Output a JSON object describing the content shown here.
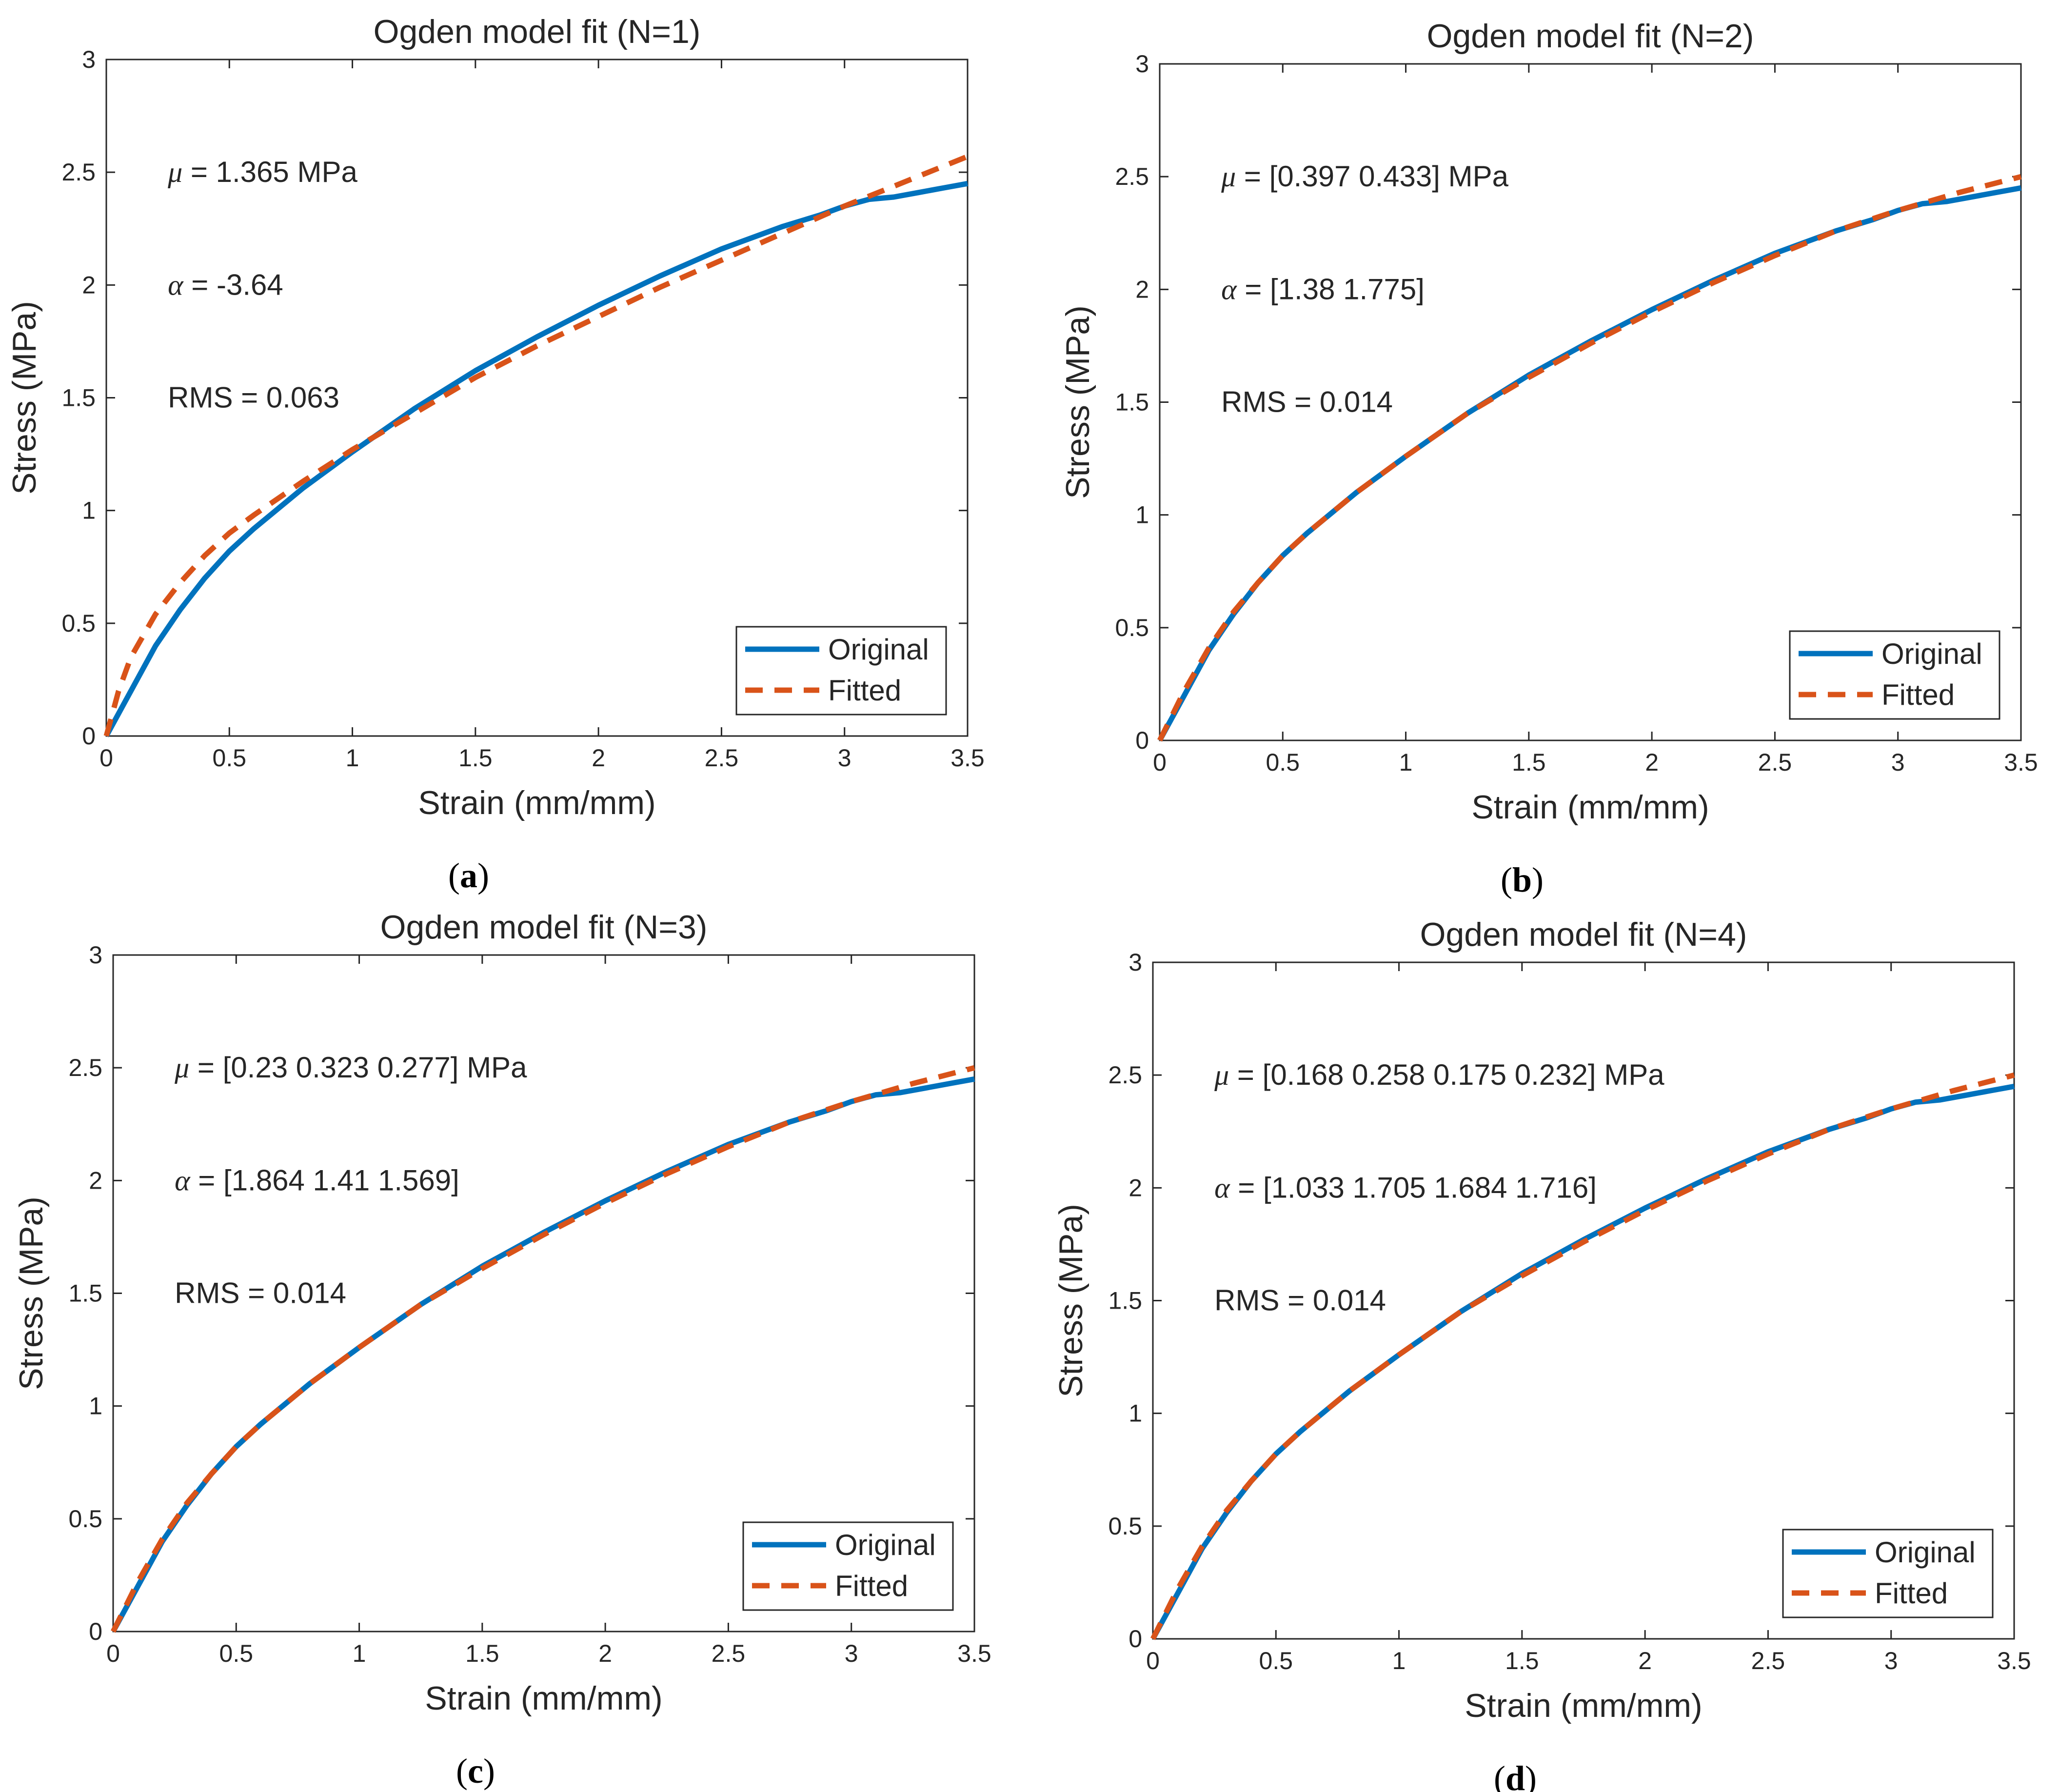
{
  "chart_data": [
    {
      "type": "line",
      "panel": "a",
      "caption": "a",
      "title": "Ogden model fit (N=1)",
      "xlabel": "Strain (mm/mm)",
      "ylabel": "Stress (MPa)",
      "xlim": [
        0,
        3.5
      ],
      "ylim": [
        0,
        3
      ],
      "xticks": [
        0,
        0.5,
        1,
        1.5,
        2,
        2.5,
        3,
        3.5
      ],
      "xtick_labels": [
        "0",
        "0.5",
        "1",
        "1.5",
        "2",
        "2.5",
        "3",
        "3.5"
      ],
      "yticks": [
        0,
        0.5,
        1,
        1.5,
        2,
        2.5,
        3
      ],
      "ytick_labels": [
        "0",
        "0.5",
        "1",
        "1.5",
        "2",
        "2.5",
        "3"
      ],
      "annotations": [
        {
          "symbol": "μ",
          "text": " = 1.365 MPa",
          "x": 0.25,
          "y": 2.5
        },
        {
          "symbol": "α",
          "text": " = -3.64",
          "x": 0.25,
          "y": 2.0
        },
        {
          "symbol": "",
          "text": "RMS = 0.063",
          "x": 0.25,
          "y": 1.5
        }
      ],
      "legend": {
        "position": "bottom-right",
        "entries": [
          "Original",
          "Fitted"
        ]
      },
      "series": [
        {
          "name": "Original",
          "style": "solid",
          "color": "#0072BD",
          "x": [
            0,
            0.1,
            0.2,
            0.3,
            0.4,
            0.5,
            0.6,
            0.8,
            1.0,
            1.25,
            1.5,
            1.75,
            2.0,
            2.25,
            2.5,
            2.75,
            2.9,
            3.0,
            3.1,
            3.2,
            3.3,
            3.4,
            3.5
          ],
          "y": [
            0,
            0.2,
            0.4,
            0.56,
            0.7,
            0.82,
            0.92,
            1.1,
            1.26,
            1.45,
            1.62,
            1.77,
            1.91,
            2.04,
            2.16,
            2.26,
            2.31,
            2.35,
            2.38,
            2.39,
            2.41,
            2.43,
            2.45
          ]
        },
        {
          "name": "Fitted",
          "style": "dashed",
          "color": "#D95319",
          "x": [
            0,
            0.05,
            0.1,
            0.2,
            0.3,
            0.4,
            0.5,
            0.6,
            0.8,
            1.0,
            1.25,
            1.5,
            1.75,
            2.0,
            2.25,
            2.5,
            2.75,
            3.0,
            3.25,
            3.5
          ],
          "y": [
            0,
            0.2,
            0.35,
            0.54,
            0.68,
            0.8,
            0.9,
            0.98,
            1.13,
            1.27,
            1.43,
            1.59,
            1.73,
            1.86,
            1.99,
            2.11,
            2.23,
            2.35,
            2.46,
            2.57
          ]
        }
      ]
    },
    {
      "type": "line",
      "panel": "b",
      "caption": "b",
      "title": "Ogden model fit (N=2)",
      "xlabel": "Strain (mm/mm)",
      "ylabel": "Stress (MPa)",
      "xlim": [
        0,
        3.5
      ],
      "ylim": [
        0,
        3
      ],
      "xticks": [
        0,
        0.5,
        1,
        1.5,
        2,
        2.5,
        3,
        3.5
      ],
      "xtick_labels": [
        "0",
        "0.5",
        "1",
        "1.5",
        "2",
        "2.5",
        "3",
        "3.5"
      ],
      "yticks": [
        0,
        0.5,
        1,
        1.5,
        2,
        2.5,
        3
      ],
      "ytick_labels": [
        "0",
        "0.5",
        "1",
        "1.5",
        "2",
        "2.5",
        "3"
      ],
      "annotations": [
        {
          "symbol": "μ",
          "text": " = [0.397 0.433] MPa",
          "x": 0.25,
          "y": 2.5
        },
        {
          "symbol": "α",
          "text": " = [1.38 1.775]",
          "x": 0.25,
          "y": 2.0
        },
        {
          "symbol": "",
          "text": "RMS = 0.014",
          "x": 0.25,
          "y": 1.5
        }
      ],
      "legend": {
        "position": "bottom-right",
        "entries": [
          "Original",
          "Fitted"
        ]
      },
      "series": [
        {
          "name": "Original",
          "style": "solid",
          "color": "#0072BD",
          "x": [
            0,
            0.1,
            0.2,
            0.3,
            0.4,
            0.5,
            0.6,
            0.8,
            1.0,
            1.25,
            1.5,
            1.75,
            2.0,
            2.25,
            2.5,
            2.75,
            2.9,
            3.0,
            3.1,
            3.2,
            3.3,
            3.4,
            3.5
          ],
          "y": [
            0,
            0.2,
            0.4,
            0.56,
            0.7,
            0.82,
            0.92,
            1.1,
            1.26,
            1.45,
            1.62,
            1.77,
            1.91,
            2.04,
            2.16,
            2.26,
            2.31,
            2.35,
            2.38,
            2.39,
            2.41,
            2.43,
            2.45
          ]
        },
        {
          "name": "Fitted",
          "style": "dashed",
          "color": "#D95319",
          "x": [
            0,
            0.1,
            0.2,
            0.3,
            0.4,
            0.5,
            0.6,
            0.8,
            1.0,
            1.25,
            1.5,
            1.75,
            2.0,
            2.25,
            2.5,
            2.75,
            3.0,
            3.25,
            3.5
          ],
          "y": [
            0,
            0.22,
            0.41,
            0.57,
            0.7,
            0.82,
            0.92,
            1.1,
            1.26,
            1.45,
            1.61,
            1.76,
            1.9,
            2.03,
            2.15,
            2.26,
            2.35,
            2.43,
            2.5
          ]
        }
      ]
    },
    {
      "type": "line",
      "panel": "c",
      "caption": "c",
      "title": "Ogden model fit (N=3)",
      "xlabel": "Strain (mm/mm)",
      "ylabel": "Stress (MPa)",
      "xlim": [
        0,
        3.5
      ],
      "ylim": [
        0,
        3
      ],
      "xticks": [
        0,
        0.5,
        1,
        1.5,
        2,
        2.5,
        3,
        3.5
      ],
      "xtick_labels": [
        "0",
        "0.5",
        "1",
        "1.5",
        "2",
        "2.5",
        "3",
        "3.5"
      ],
      "yticks": [
        0,
        0.5,
        1,
        1.5,
        2,
        2.5,
        3
      ],
      "ytick_labels": [
        "0",
        "0.5",
        "1",
        "1.5",
        "2",
        "2.5",
        "3"
      ],
      "annotations": [
        {
          "symbol": "μ",
          "text": " = [0.23 0.323 0.277] MPa",
          "x": 0.25,
          "y": 2.5
        },
        {
          "symbol": "α",
          "text": " = [1.864 1.41 1.569]",
          "x": 0.25,
          "y": 2.0
        },
        {
          "symbol": "",
          "text": "RMS = 0.014",
          "x": 0.25,
          "y": 1.5
        }
      ],
      "legend": {
        "position": "bottom-right",
        "entries": [
          "Original",
          "Fitted"
        ]
      },
      "series": [
        {
          "name": "Original",
          "style": "solid",
          "color": "#0072BD",
          "x": [
            0,
            0.1,
            0.2,
            0.3,
            0.4,
            0.5,
            0.6,
            0.8,
            1.0,
            1.25,
            1.5,
            1.75,
            2.0,
            2.25,
            2.5,
            2.75,
            2.9,
            3.0,
            3.1,
            3.2,
            3.3,
            3.4,
            3.5
          ],
          "y": [
            0,
            0.2,
            0.4,
            0.56,
            0.7,
            0.82,
            0.92,
            1.1,
            1.26,
            1.45,
            1.62,
            1.77,
            1.91,
            2.04,
            2.16,
            2.26,
            2.31,
            2.35,
            2.38,
            2.39,
            2.41,
            2.43,
            2.45
          ]
        },
        {
          "name": "Fitted",
          "style": "dashed",
          "color": "#D95319",
          "x": [
            0,
            0.1,
            0.2,
            0.3,
            0.4,
            0.5,
            0.6,
            0.8,
            1.0,
            1.25,
            1.5,
            1.75,
            2.0,
            2.25,
            2.5,
            2.75,
            3.0,
            3.25,
            3.5
          ],
          "y": [
            0,
            0.22,
            0.41,
            0.57,
            0.7,
            0.82,
            0.92,
            1.1,
            1.26,
            1.45,
            1.61,
            1.76,
            1.9,
            2.03,
            2.15,
            2.26,
            2.35,
            2.43,
            2.5
          ]
        }
      ]
    },
    {
      "type": "line",
      "panel": "d",
      "caption": "d",
      "title": "Ogden model fit (N=4)",
      "xlabel": "Strain (mm/mm)",
      "ylabel": "Stress (MPa)",
      "xlim": [
        0,
        3.5
      ],
      "ylim": [
        0,
        3
      ],
      "xticks": [
        0,
        0.5,
        1,
        1.5,
        2,
        2.5,
        3,
        3.5
      ],
      "xtick_labels": [
        "0",
        "0.5",
        "1",
        "1.5",
        "2",
        "2.5",
        "3",
        "3.5"
      ],
      "yticks": [
        0,
        0.5,
        1,
        1.5,
        2,
        2.5,
        3
      ],
      "ytick_labels": [
        "0",
        "0.5",
        "1",
        "1.5",
        "2",
        "2.5",
        "3"
      ],
      "annotations": [
        {
          "symbol": "μ",
          "text": " = [0.168 0.258 0.175 0.232] MPa",
          "x": 0.25,
          "y": 2.5
        },
        {
          "symbol": "α",
          "text": " = [1.033 1.705 1.684 1.716]",
          "x": 0.25,
          "y": 2.0
        },
        {
          "symbol": "",
          "text": "RMS = 0.014",
          "x": 0.25,
          "y": 1.5
        }
      ],
      "legend": {
        "position": "bottom-right",
        "entries": [
          "Original",
          "Fitted"
        ]
      },
      "series": [
        {
          "name": "Original",
          "style": "solid",
          "color": "#0072BD",
          "x": [
            0,
            0.1,
            0.2,
            0.3,
            0.4,
            0.5,
            0.6,
            0.8,
            1.0,
            1.25,
            1.5,
            1.75,
            2.0,
            2.25,
            2.5,
            2.75,
            2.9,
            3.0,
            3.1,
            3.2,
            3.3,
            3.4,
            3.5
          ],
          "y": [
            0,
            0.2,
            0.4,
            0.56,
            0.7,
            0.82,
            0.92,
            1.1,
            1.26,
            1.45,
            1.62,
            1.77,
            1.91,
            2.04,
            2.16,
            2.26,
            2.31,
            2.35,
            2.38,
            2.39,
            2.41,
            2.43,
            2.45
          ]
        },
        {
          "name": "Fitted",
          "style": "dashed",
          "color": "#D95319",
          "x": [
            0,
            0.1,
            0.2,
            0.3,
            0.4,
            0.5,
            0.6,
            0.8,
            1.0,
            1.25,
            1.5,
            1.75,
            2.0,
            2.25,
            2.5,
            2.75,
            3.0,
            3.25,
            3.5
          ],
          "y": [
            0,
            0.22,
            0.41,
            0.57,
            0.7,
            0.82,
            0.92,
            1.1,
            1.26,
            1.45,
            1.61,
            1.76,
            1.9,
            2.03,
            2.15,
            2.26,
            2.35,
            2.43,
            2.5
          ]
        }
      ]
    }
  ]
}
